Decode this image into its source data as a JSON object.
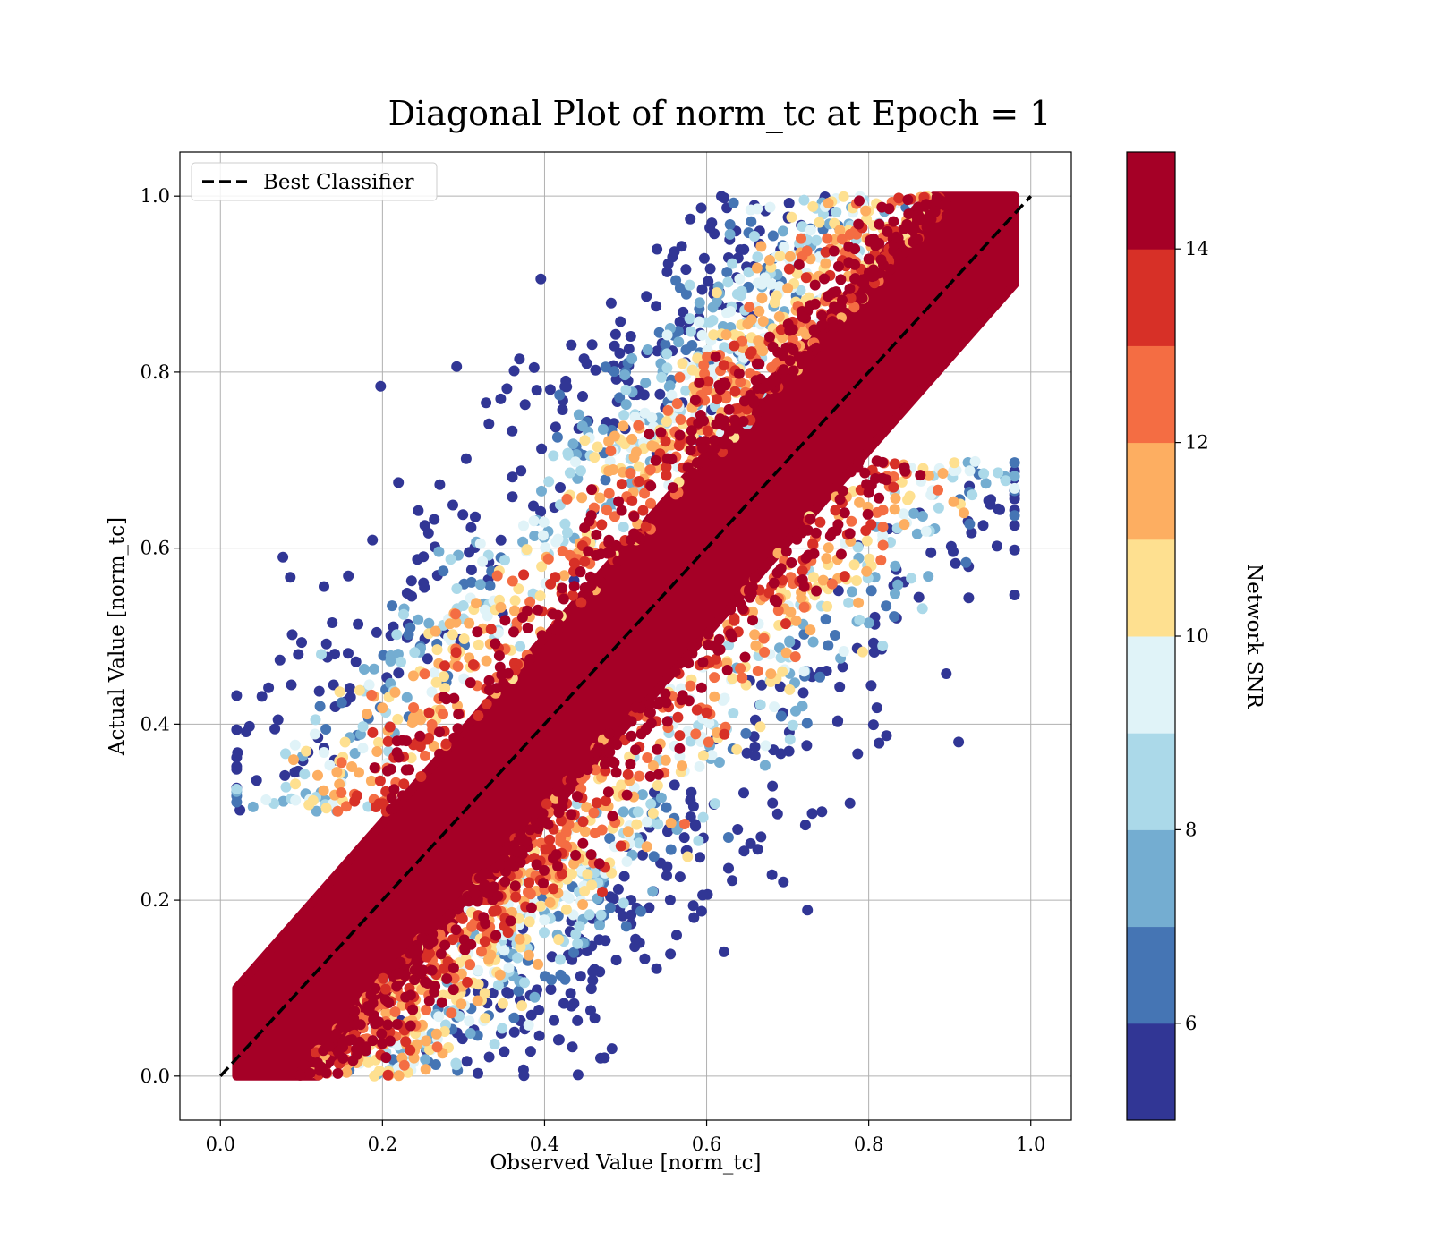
{
  "chart_data": {
    "type": "scatter",
    "title": "Diagonal Plot of norm_tc at Epoch = 1",
    "xlabel": "Observed Value [norm_tc]",
    "ylabel": "Actual Value [norm_tc]",
    "xlim": [
      -0.05,
      1.05
    ],
    "ylim": [
      -0.05,
      1.05
    ],
    "x_ticks": [
      "0.0",
      "0.2",
      "0.4",
      "0.6",
      "0.8",
      "1.0"
    ],
    "y_ticks": [
      "0.0",
      "0.2",
      "0.4",
      "0.6",
      "0.8",
      "1.0"
    ],
    "x_tick_values": [
      0.0,
      0.2,
      0.4,
      0.6,
      0.8,
      1.0
    ],
    "y_tick_values": [
      0.0,
      0.2,
      0.4,
      0.6,
      0.8,
      1.0
    ],
    "grid": true,
    "legend": {
      "placement": "top-left",
      "entries": [
        {
          "label": "Best Classifier",
          "style": "dashed",
          "color": "#000000"
        }
      ]
    },
    "reference_line": {
      "name": "Best Classifier",
      "x": [
        0.0,
        1.0
      ],
      "y": [
        0.0,
        1.0
      ]
    },
    "colorbar": {
      "label": "Network SNR",
      "range": [
        5,
        15
      ],
      "ticks": [
        "6",
        "8",
        "10",
        "12",
        "14"
      ],
      "tick_values": [
        6,
        8,
        10,
        12,
        14
      ],
      "colors": [
        "#313695",
        "#4575b4",
        "#74add1",
        "#abd9e9",
        "#e0f3f8",
        "#fee090",
        "#fdae61",
        "#f46d43",
        "#d73027",
        "#a50026"
      ]
    },
    "scatter_description": {
      "high_snr_band": {
        "color": "#a50026",
        "offset_from_diagonal": 0.1
      },
      "x_range": [
        0.02,
        0.98
      ],
      "y_range": [
        0.0,
        1.0
      ],
      "points_shown_approx": 3000
    }
  }
}
